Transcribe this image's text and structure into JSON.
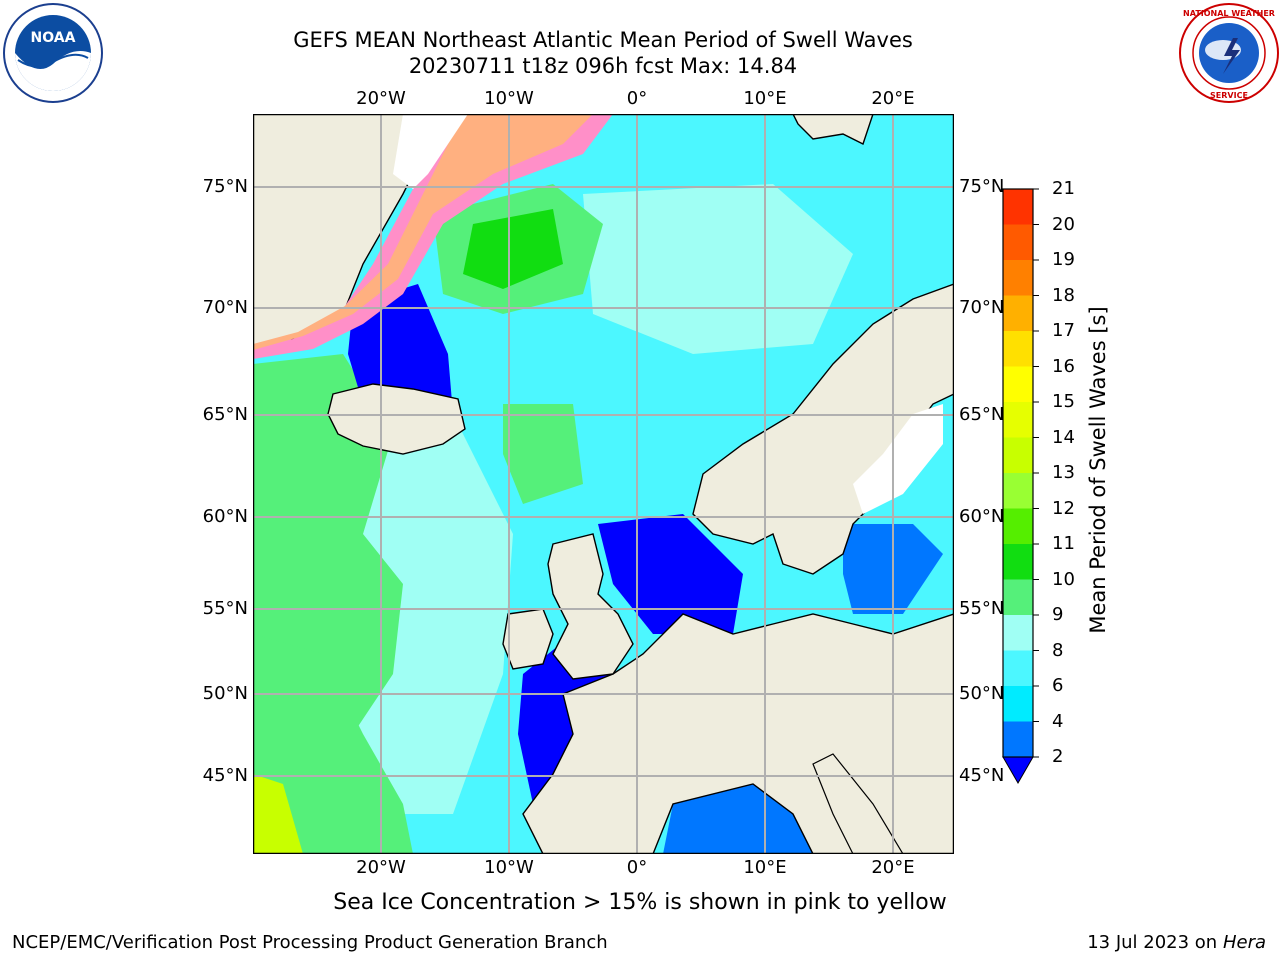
{
  "title": {
    "line1": "GEFS MEAN Northeast Atlantic Mean Period of Swell Waves",
    "line2": "20230711 t18z 096h fcst   Max: 14.84"
  },
  "map": {
    "lon_ticks": [
      "20°W",
      "10°W",
      "0°",
      "10°E",
      "20°E"
    ],
    "lat_ticks_left": [
      "75°N",
      "70°N",
      "65°N",
      "60°N",
      "55°N",
      "50°N",
      "45°N"
    ],
    "lat_ticks_right": [
      "75°N",
      "70°N",
      "65°N",
      "60°N",
      "55°N",
      "50°N",
      "45°N"
    ],
    "land_color": "#efedde",
    "ocean_base_color": "#4cf7ff"
  },
  "colorbar": {
    "title": "Mean Period of Swell Waves [s]",
    "labels": [
      "21",
      "20",
      "19",
      "18",
      "17",
      "16",
      "15",
      "14",
      "13",
      "12",
      "11",
      "10",
      "9",
      "8",
      "6",
      "4",
      "2"
    ],
    "colors_top_to_bottom": [
      "#ff0000",
      "#ff3300",
      "#ff5a00",
      "#ff8000",
      "#ffb000",
      "#ffe000",
      "#ffff00",
      "#e6ff00",
      "#c8ff00",
      "#99ff33",
      "#55ee00",
      "#11dd11",
      "#55f07a",
      "#a0fff4",
      "#4cf7ff",
      "#00ebff",
      "#0077ff"
    ],
    "extend_color": "#0000ff"
  },
  "notes": {
    "ice": "Sea Ice Concentration > 15% is shown in pink to yellow"
  },
  "footer": {
    "left": "NCEP/EMC/Verification Post Processing Product Generation Branch",
    "right_date": "13 Jul 2023 on ",
    "right_machine": "Hera"
  },
  "logos": {
    "left": "noaa-logo",
    "right": "nws-logo"
  }
}
